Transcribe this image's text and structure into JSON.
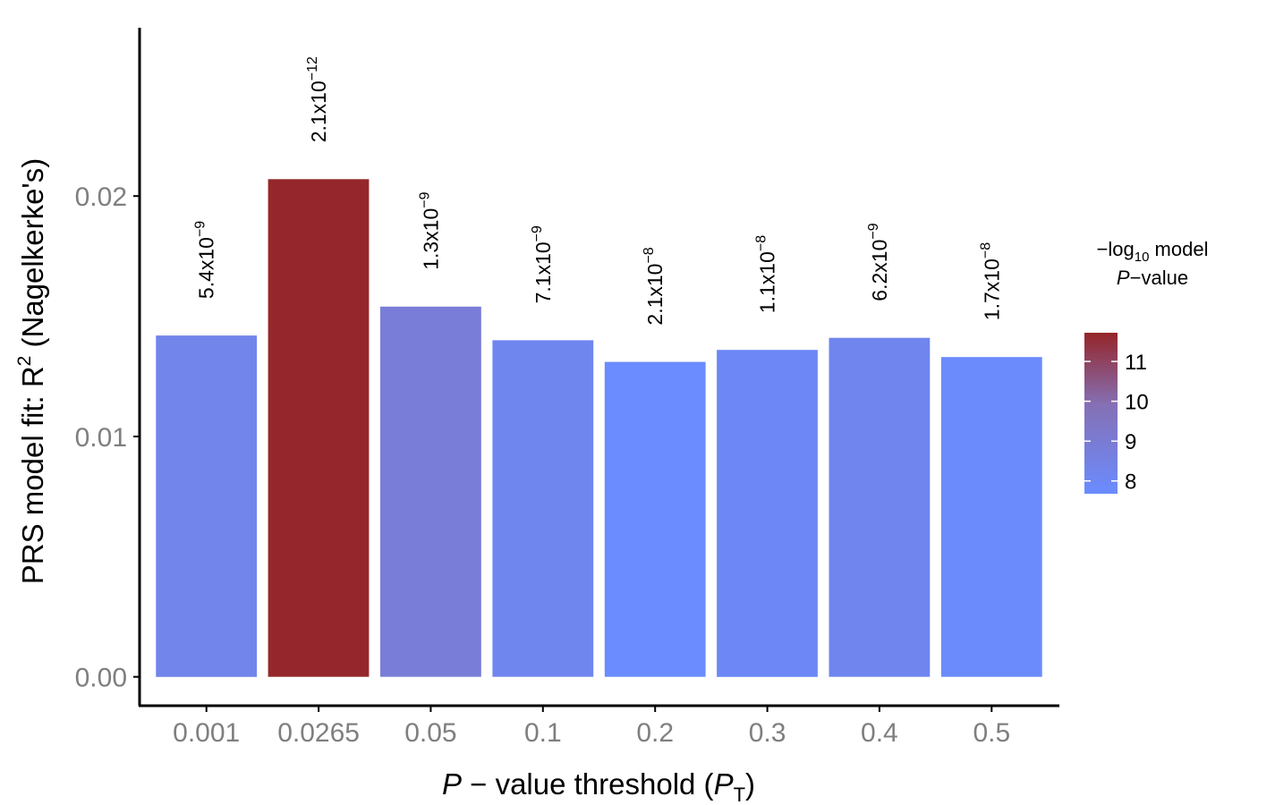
{
  "chart_data": {
    "type": "bar",
    "categories": [
      "0.001",
      "0.0265",
      "0.05",
      "0.1",
      "0.2",
      "0.3",
      "0.4",
      "0.5"
    ],
    "values": [
      0.0142,
      0.0207,
      0.0154,
      0.014,
      0.0131,
      0.0136,
      0.0141,
      0.0133
    ],
    "bar_labels": [
      {
        "mantissa": "5.4x10",
        "exponent": "−9"
      },
      {
        "mantissa": "2.1x10",
        "exponent": "−12"
      },
      {
        "mantissa": "1.3x10",
        "exponent": "−9"
      },
      {
        "mantissa": "7.1x10",
        "exponent": "−9"
      },
      {
        "mantissa": "2.1x10",
        "exponent": "−8"
      },
      {
        "mantissa": "1.1x10",
        "exponent": "−8"
      },
      {
        "mantissa": "6.2x10",
        "exponent": "−9"
      },
      {
        "mantissa": "1.7x10",
        "exponent": "−8"
      }
    ],
    "color_values": [
      8.27,
      11.68,
      8.89,
      8.15,
      7.68,
      7.96,
      8.21,
      7.77
    ],
    "ylim": [
      -0.0012,
      0.027
    ],
    "yticks": [
      0.0,
      0.01,
      0.02
    ],
    "ytick_labels": [
      "0.00",
      "0.01",
      "0.02"
    ],
    "ylabel": {
      "prefix": "PRS model fit:  R",
      "sup": "2",
      "suffix": " (Nagelkerke's)"
    },
    "xlabel": {
      "p": "P",
      "middle": " − value threshold (",
      "pt": "P",
      "sub": "T",
      "end": ")"
    },
    "legend": {
      "title_line1_a": "−log",
      "title_line1_sub": "10",
      "title_line1_b": " model",
      "title_line2_p": "P",
      "title_line2_rest": "−value",
      "range": [
        7.68,
        11.72
      ],
      "ticks": [
        8,
        9,
        10,
        11
      ],
      "tick_labels": [
        "8",
        "9",
        "10",
        "11"
      ],
      "placement": "right"
    },
    "colors": {
      "low": "#6a8cff",
      "mid": "#8570b5",
      "high": "#952529",
      "axis": "#000000",
      "tick_text": "#7f7f7f"
    },
    "grid": false
  }
}
